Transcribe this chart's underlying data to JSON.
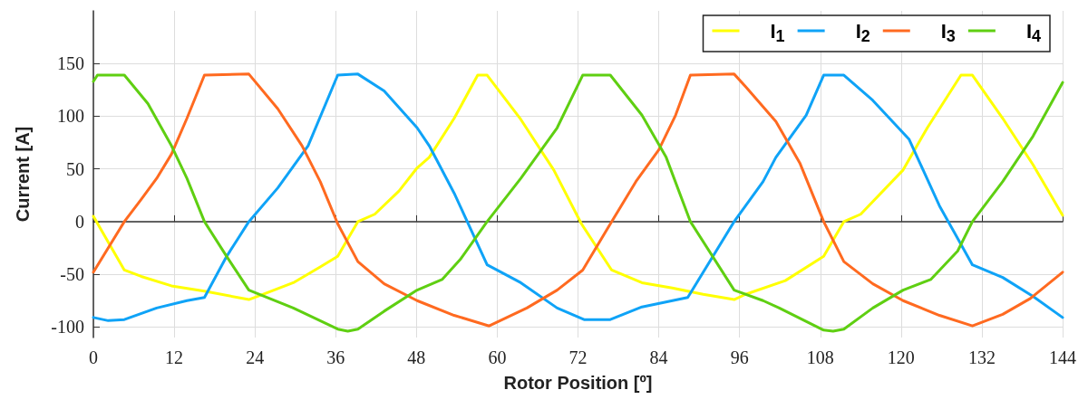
{
  "chart_data": {
    "type": "line",
    "xlabel": "Rotor Position [º]",
    "ylabel": "Current [A]",
    "xlim": [
      0,
      144
    ],
    "xticks": [
      0,
      12,
      24,
      36,
      48,
      60,
      72,
      84,
      96,
      108,
      120,
      132,
      144
    ],
    "ylim": [
      -110,
      200
    ],
    "yticks": [
      -100,
      -50,
      0,
      50,
      100,
      150
    ],
    "grid": true,
    "legend": "top right",
    "marker": "none",
    "line_style": "solid",
    "series": [
      {
        "name": "I$_{1}$",
        "color": "#ffff00",
        "x": [
          0,
          4.6,
          7.1,
          11.6,
          16.5,
          23.1,
          25.6,
          29.7,
          33.7,
          36.3,
          39.3,
          41.8,
          45.4,
          48.1,
          49.9,
          53.6,
          57.1,
          58.5,
          63.5,
          68.4,
          72.5,
          77.0,
          81.5,
          86.0,
          90.6,
          95.2,
          96.9,
          102.8,
          108.5,
          111.5,
          114.0,
          120.3,
          123.9,
          128.9,
          130.6,
          135.1,
          139.6,
          144
        ],
        "values": [
          5,
          -46,
          -52,
          -61,
          -66,
          -74,
          -68,
          -58,
          -43,
          -33,
          0,
          7,
          29,
          51,
          61,
          98,
          139,
          139,
          97,
          49,
          -2,
          -46,
          -58,
          -63,
          -69,
          -74,
          -69,
          -56,
          -33,
          0,
          7,
          49,
          89,
          139,
          139,
          98,
          54,
          6
        ]
      },
      {
        "name": "I$_{2}$",
        "color": "#0fa3f7",
        "x": [
          0,
          2.2,
          4.6,
          9.4,
          13.9,
          16.5,
          19.8,
          23.1,
          27.4,
          31.9,
          36.3,
          39.3,
          43.2,
          48.1,
          49.9,
          53.6,
          58.5,
          63.5,
          68.9,
          72.9,
          76.8,
          81.5,
          88.3,
          95.2,
          99.5,
          101.4,
          105.9,
          108.5,
          111.5,
          115.8,
          121.2,
          125.7,
          130.6,
          135.1,
          139.6,
          144
        ],
        "values": [
          -91,
          -94,
          -93,
          -82,
          -75,
          -72,
          -33,
          0,
          32,
          72,
          139,
          140,
          124,
          89,
          72,
          27,
          -41,
          -58,
          -82,
          -93,
          -93,
          -81,
          -72,
          0,
          38,
          61,
          101,
          139,
          139,
          115,
          78,
          15,
          -41,
          -53,
          -71,
          -91
        ]
      },
      {
        "name": "I$_{3}$",
        "color": "#ff6a20",
        "x": [
          0,
          4.6,
          7.1,
          9.4,
          11.6,
          13.9,
          16.5,
          23.1,
          27.4,
          31.0,
          33.7,
          36.3,
          39.3,
          43.2,
          48.1,
          53.6,
          58.8,
          64.4,
          68.9,
          72.7,
          77.0,
          80.6,
          84.0,
          86.5,
          88.7,
          95.2,
          96.9,
          101.4,
          105.0,
          108.5,
          111.5,
          115.8,
          120.3,
          125.7,
          130.6,
          135.1,
          139.2,
          144
        ],
        "values": [
          -48,
          0,
          21,
          41,
          64,
          98,
          139,
          140,
          107,
          72,
          38,
          -2,
          -38,
          -59,
          -75,
          -89,
          -99,
          -82,
          -65,
          -46,
          0,
          38,
          68,
          101,
          139,
          140,
          128,
          95,
          55,
          0,
          -38,
          -59,
          -75,
          -89,
          -99,
          -88,
          -73,
          -48
        ]
      },
      {
        "name": "I$_{4}$",
        "color": "#5fcf12",
        "x": [
          0,
          0.6,
          4.6,
          8.1,
          11.6,
          13.9,
          16.5,
          19.8,
          23.1,
          29.7,
          36.3,
          37.8,
          39.3,
          43.2,
          48.1,
          51.8,
          54.5,
          58.5,
          63.5,
          68.9,
          72.7,
          76.8,
          81.5,
          85.1,
          88.7,
          95.2,
          99.5,
          101.9,
          108.5,
          109.9,
          111.5,
          115.8,
          120.3,
          124.4,
          128.4,
          130.6,
          135.1,
          139.6,
          144
        ],
        "values": [
          133,
          139,
          139,
          112,
          72,
          41,
          0,
          -33,
          -65,
          -82,
          -102,
          -104,
          -102,
          -85,
          -65,
          -55,
          -36,
          0,
          41,
          89,
          139,
          139,
          101,
          61,
          0,
          -65,
          -75,
          -82,
          -103,
          -104,
          -102,
          -82,
          -65,
          -55,
          -28,
          0,
          38,
          81,
          132
        ]
      }
    ]
  }
}
